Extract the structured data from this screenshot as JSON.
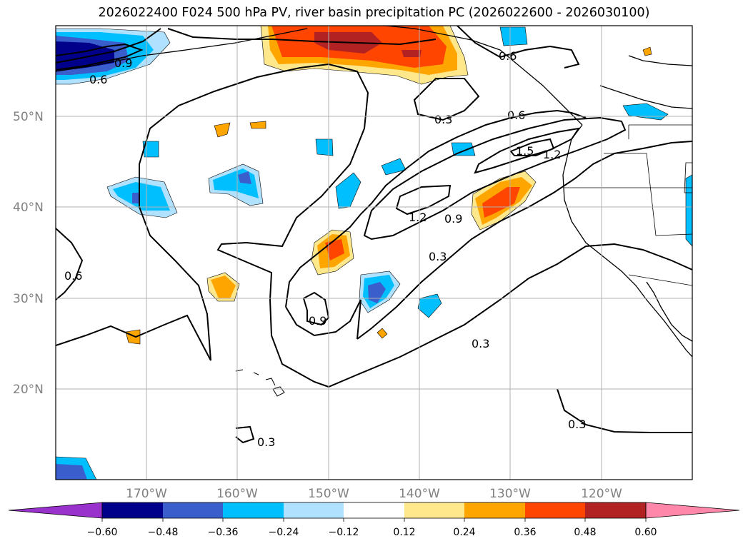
{
  "title": "2026022400 F024 500 hPa PV, river basin precipitation PC (2026022600 - 2026030100)",
  "map": {
    "lat_labels": [
      "50°N",
      "40°N",
      "30°N",
      "20°N"
    ],
    "lon_labels": [
      "170°W",
      "160°W",
      "150°W",
      "140°W",
      "130°W",
      "120°W"
    ],
    "contour_labels": [
      "0.9",
      "0.6",
      "0.6",
      "0.3",
      "0.6",
      "1.5",
      "1.2",
      "1.2",
      "0.9",
      "0.3",
      "0.6",
      "0.9",
      "0.3",
      "0.3",
      "0.3"
    ],
    "contour_color": "#000000",
    "grid_color": "#b0b0b0",
    "coast_color": "#000000"
  },
  "colorbar": {
    "tick_labels": [
      "−0.60",
      "−0.48",
      "−0.36",
      "−0.24",
      "−0.12",
      "0.12",
      "0.24",
      "0.36",
      "0.48",
      "0.60"
    ],
    "colors": [
      "#9932cc",
      "#00008b",
      "#3a5fcd",
      "#00bfff",
      "#b0e2ff",
      "#ffffff",
      "#ffe88c",
      "#ffa500",
      "#ff4500",
      "#b22222",
      "#ff88aa"
    ]
  }
}
